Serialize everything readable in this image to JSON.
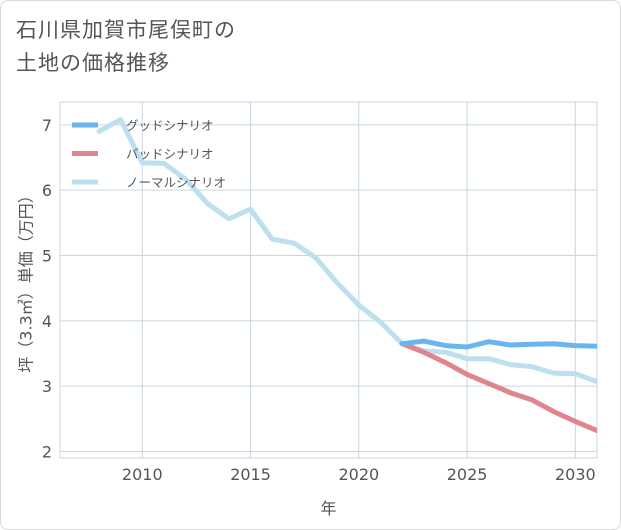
{
  "title": {
    "line1": "石川県加賀市尾俣町の",
    "line2": "土地の価格推移"
  },
  "colors": {
    "good": "#6ab6ec",
    "bad": "#de858e",
    "normal": "#bde0ef",
    "grid": "#c8d6e2",
    "plot_bg": "#ffffff"
  },
  "chart_data": {
    "type": "line",
    "title": "石川県加賀市尾俣町の土地の価格推移",
    "xlabel": "年",
    "ylabel": "坪（3.3㎡）単価（万円）",
    "xlim": [
      2006.2,
      2031
    ],
    "ylim": [
      1.9,
      7.35
    ],
    "x_ticks": [
      2010,
      2015,
      2020,
      2025,
      2030
    ],
    "y_ticks": [
      2,
      3,
      4,
      5,
      6,
      7
    ],
    "grid": true,
    "legend_position": "top-left",
    "series": [
      {
        "name": "グッドシナリオ",
        "key": "good",
        "x": [
          2022,
          2023,
          2024,
          2025,
          2026,
          2027,
          2028,
          2029,
          2030,
          2031
        ],
        "y": [
          3.65,
          3.69,
          3.62,
          3.6,
          3.68,
          3.63,
          3.64,
          3.65,
          3.62,
          3.61
        ]
      },
      {
        "name": "バッドシナリオ",
        "key": "bad",
        "x": [
          2022,
          2023,
          2024,
          2025,
          2026,
          2027,
          2028,
          2029,
          2030,
          2031
        ],
        "y": [
          3.65,
          3.52,
          3.36,
          3.18,
          3.04,
          2.9,
          2.79,
          2.61,
          2.46,
          2.32
        ]
      },
      {
        "name": "ノーマルシナリオ",
        "key": "normal",
        "x": [
          2008,
          2009,
          2010,
          2011,
          2012,
          2013,
          2014,
          2015,
          2016,
          2017,
          2018,
          2019,
          2020,
          2021,
          2022,
          2023,
          2024,
          2025,
          2026,
          2027,
          2028,
          2029,
          2030,
          2031
        ],
        "y": [
          6.9,
          7.08,
          6.42,
          6.41,
          6.17,
          5.8,
          5.56,
          5.71,
          5.25,
          5.19,
          4.97,
          4.58,
          4.24,
          3.98,
          3.65,
          3.54,
          3.52,
          3.42,
          3.42,
          3.33,
          3.3,
          3.2,
          3.19,
          3.07
        ]
      }
    ]
  }
}
